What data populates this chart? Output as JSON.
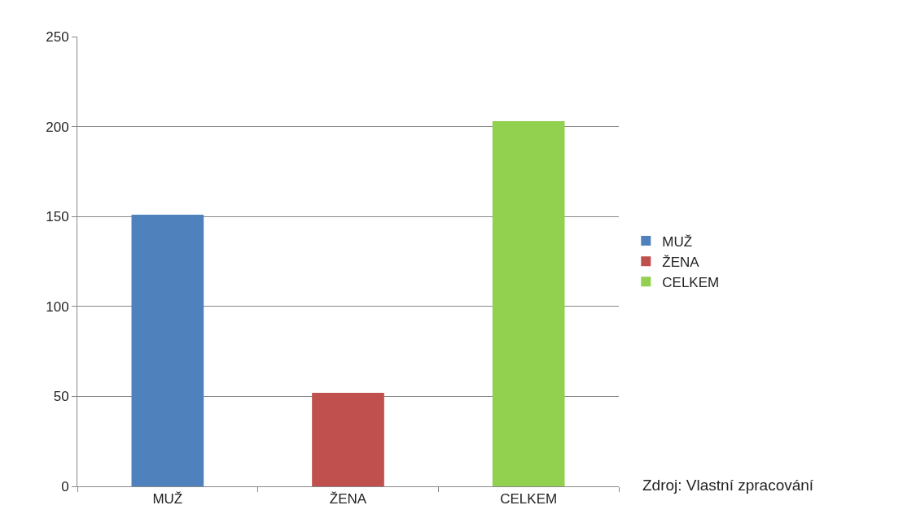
{
  "chart_data": {
    "type": "bar",
    "categories": [
      "MUŽ",
      "ŽENA",
      "CELKEM"
    ],
    "series": [
      {
        "name": "MUŽ",
        "color": "#4f81bd",
        "values": [
          151,
          null,
          null
        ]
      },
      {
        "name": "ŽENA",
        "color": "#c0504d",
        "values": [
          null,
          52,
          null
        ]
      },
      {
        "name": "CELKEM",
        "color": "#92d050",
        "values": [
          null,
          null,
          203
        ]
      }
    ],
    "ylim": [
      0,
      250
    ],
    "yticks": [
      0,
      50,
      100,
      150,
      200,
      250
    ],
    "grid": "y",
    "legend": "right",
    "annotations": [
      "Zdroj: Vlastní zpracování"
    ]
  }
}
